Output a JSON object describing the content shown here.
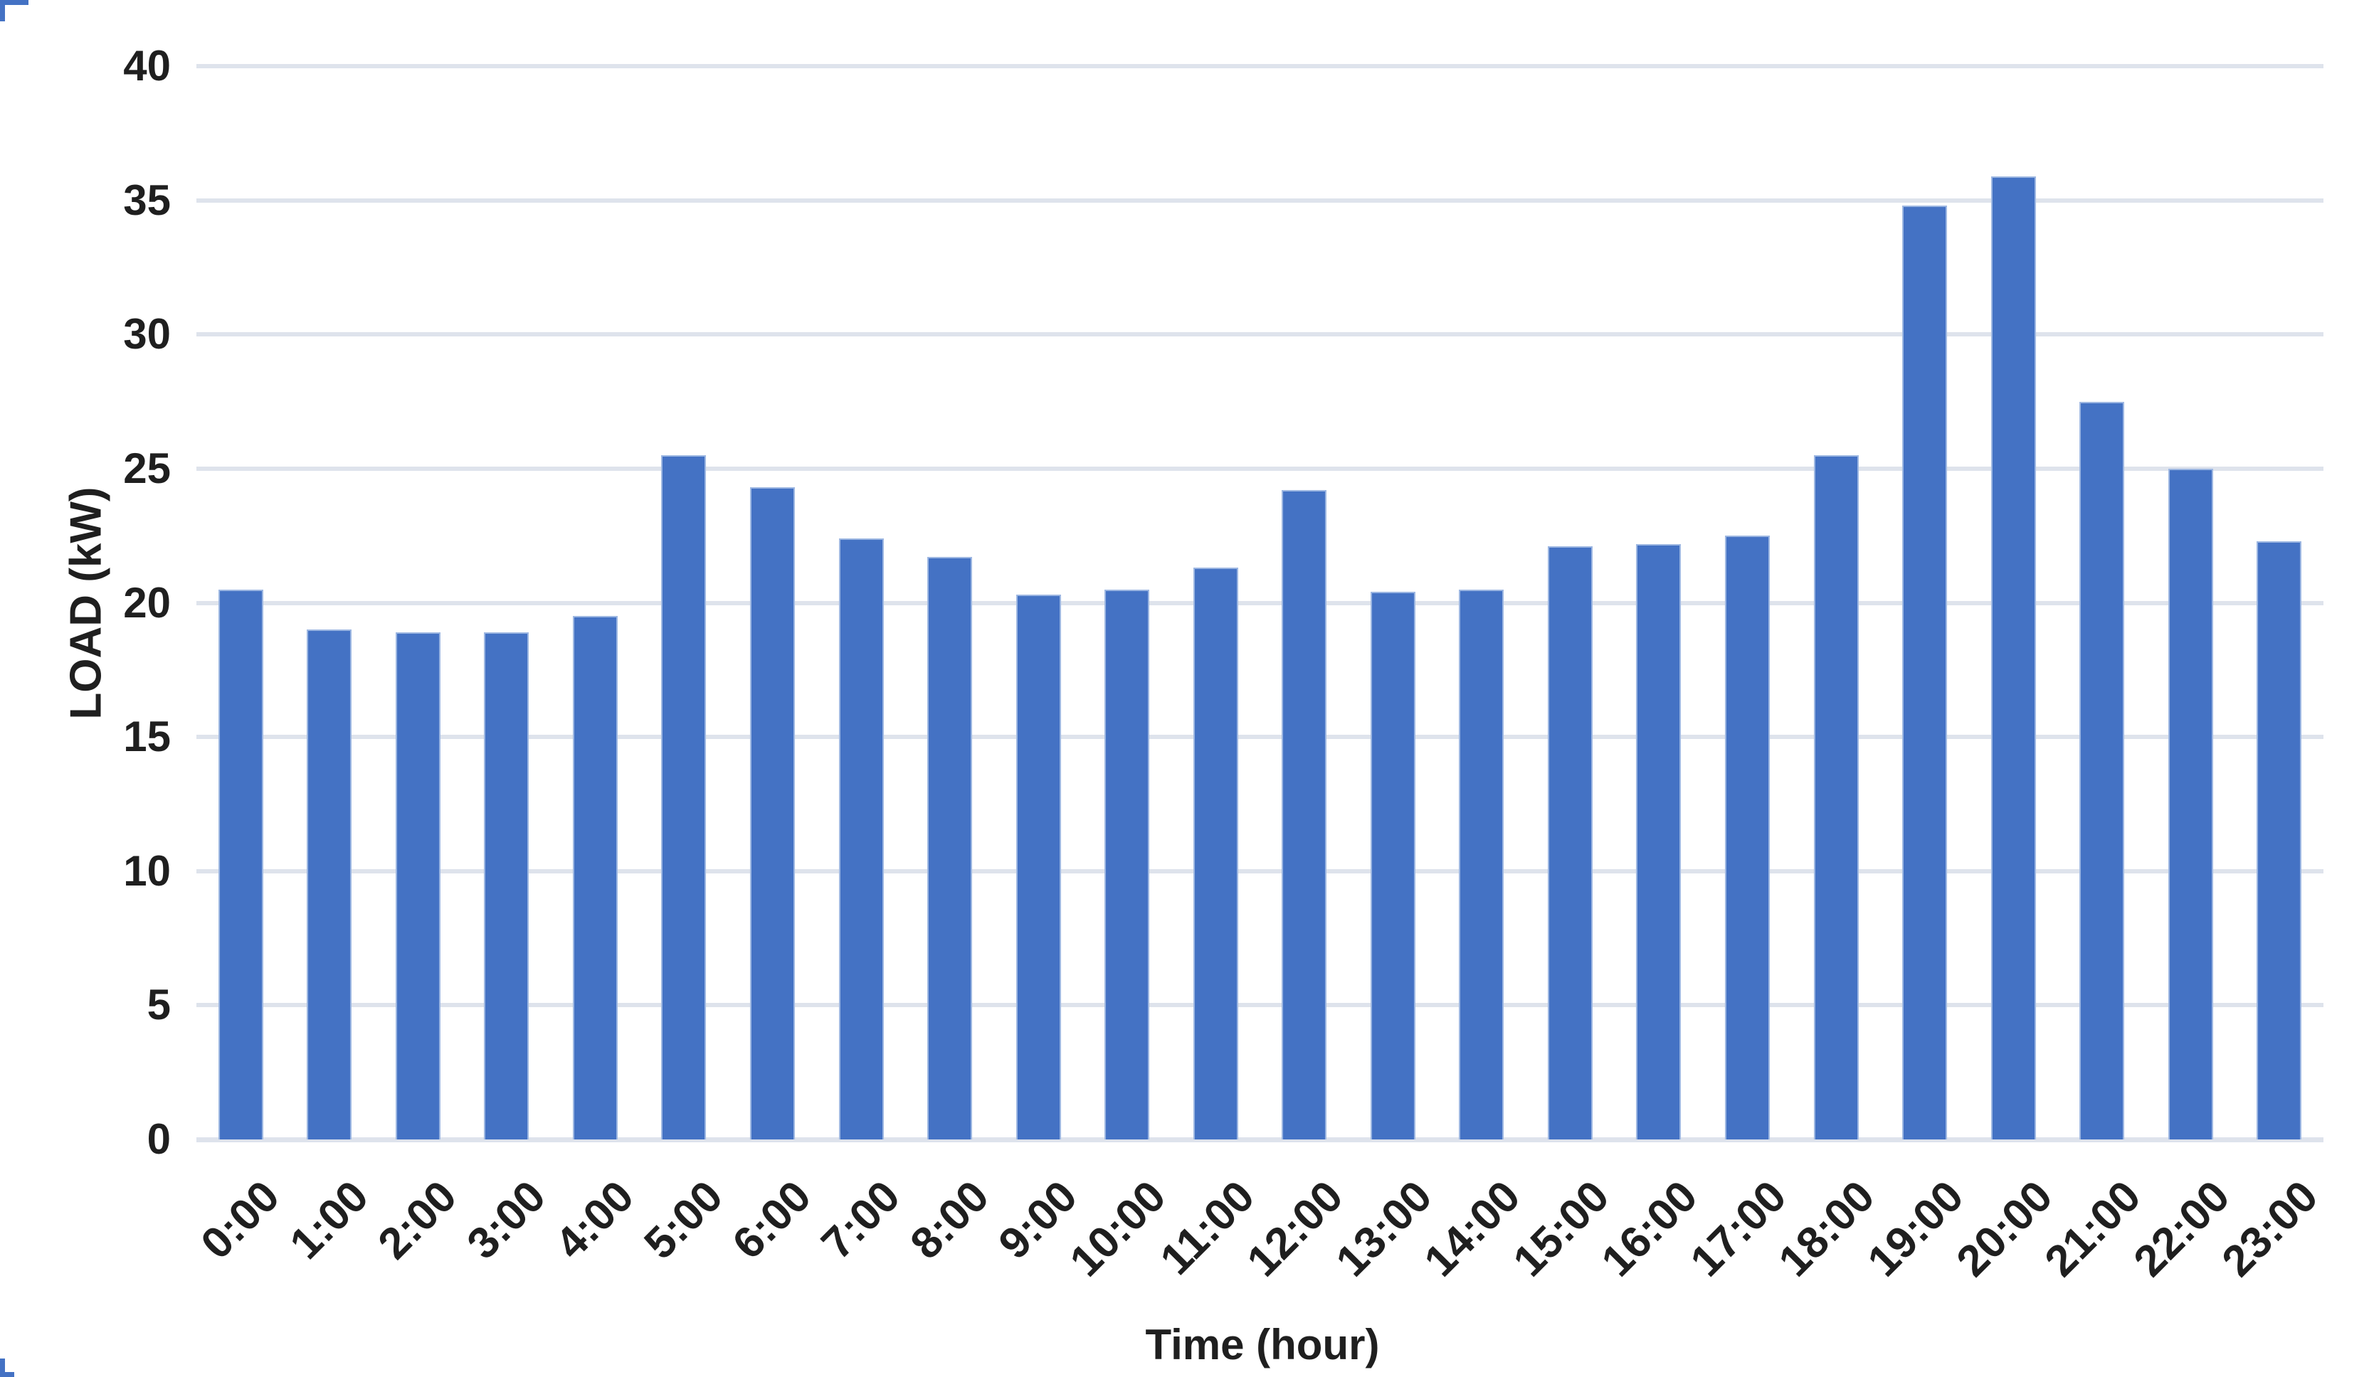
{
  "chart_data": {
    "type": "bar",
    "categories": [
      "0:00",
      "1:00",
      "2:00",
      "3:00",
      "4:00",
      "5:00",
      "6:00",
      "7:00",
      "8:00",
      "9:00",
      "10:00",
      "11:00",
      "12:00",
      "13:00",
      "14:00",
      "15:00",
      "16:00",
      "17:00",
      "18:00",
      "19:00",
      "20:00",
      "21:00",
      "22:00",
      "23:00"
    ],
    "values": [
      20.5,
      19.0,
      18.9,
      18.9,
      19.5,
      25.5,
      24.3,
      22.4,
      21.7,
      20.3,
      20.5,
      21.3,
      24.2,
      20.4,
      20.5,
      22.1,
      22.2,
      22.5,
      25.5,
      34.8,
      35.9,
      27.5,
      25.0,
      22.3
    ],
    "xlabel": "Time (hour)",
    "ylabel": "LOAD (kW)",
    "ylim": [
      0,
      40
    ],
    "yticks": [
      0,
      5,
      10,
      15,
      20,
      25,
      30,
      35,
      40
    ],
    "grid": true,
    "legend_position": "none",
    "bar_color": "#4472C4",
    "bar_edge_color": "#9db7e2",
    "gridline_color": "#dee3ec",
    "text_color": "#1f1f1f",
    "background_color": "#ffffff"
  }
}
